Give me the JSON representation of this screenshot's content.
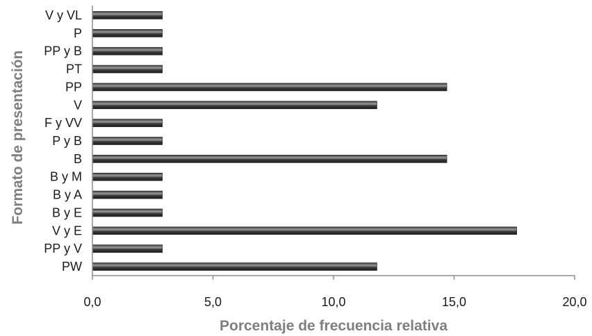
{
  "chart_data": {
    "type": "bar",
    "orientation": "horizontal",
    "categories": [
      "V y VL",
      "P",
      "PP y B",
      "PT",
      "PP",
      "V",
      "F y VV",
      "P y B",
      "B",
      "B y M",
      "B y A",
      "B y E",
      "V y E",
      "PP y V",
      "PW"
    ],
    "values": [
      2.9,
      2.9,
      2.9,
      2.9,
      14.7,
      11.8,
      2.9,
      2.9,
      14.7,
      2.9,
      2.9,
      2.9,
      17.6,
      2.9,
      11.8
    ],
    "xlabel": "Porcentaje de frecuencia relativa",
    "ylabel": "Formato de presentación",
    "xlim": [
      0,
      20
    ],
    "xticks": [
      "0,0",
      "5,0",
      "10,0",
      "15,0",
      "20,0"
    ],
    "grid": false,
    "legend": "none",
    "colors": {
      "bar": "#3a3a3a",
      "bar_highlight": "#9a9a9a",
      "axis": "#8c8c8c",
      "axis_title": "#7f7f7f"
    }
  }
}
